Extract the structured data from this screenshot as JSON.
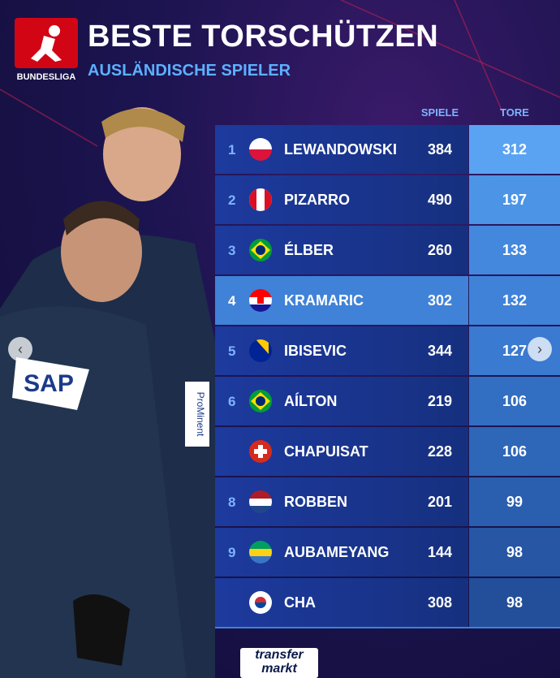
{
  "header": {
    "logo_text": "BUNDESLIGA",
    "title": "BESTE TORSCHÜTZEN",
    "subtitle": "AUSLÄNDISCHE SPIELER"
  },
  "table": {
    "columns": [
      "SPIELE",
      "TORE"
    ],
    "rows": [
      [
        1,
        "LEWANDOWSKI",
        384,
        312
      ],
      [
        2,
        "PIZARRO",
        490,
        197
      ],
      [
        3,
        "ÉLBER",
        260,
        133
      ],
      [
        4,
        "KRAMARIC",
        302,
        132
      ],
      [
        5,
        "IBISEVIC",
        344,
        127
      ],
      [
        6,
        "AÍLTON",
        219,
        106
      ],
      [
        null,
        "CHAPUISAT",
        228,
        106
      ],
      [
        8,
        "ROBBEN",
        201,
        99
      ],
      [
        9,
        "AUBAMEYANG",
        144,
        98
      ],
      [
        null,
        "CHA",
        308,
        98
      ]
    ]
  },
  "photo": {
    "texts": [
      "SAP",
      "ProMinent"
    ]
  },
  "footer": {
    "logo": [
      "transfer",
      "markt"
    ]
  }
}
